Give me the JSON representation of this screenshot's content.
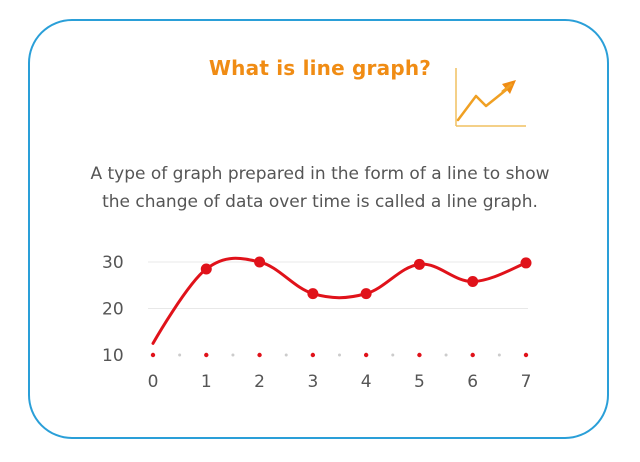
{
  "title": "What is line graph?",
  "description": {
    "line1": "A type of graph prepared in the form of a line to show",
    "line2": "the change of data over time is called a line graph."
  },
  "colors": {
    "border": "#2a9fd8",
    "title": "#f08c14",
    "line": "#e0121a",
    "text": "#555555",
    "icon": "#f0a023"
  },
  "icon": "trend-up-arrow-icon",
  "chart_data": {
    "type": "line",
    "x": [
      0,
      1,
      2,
      3,
      4,
      5,
      6,
      7
    ],
    "values": [
      12.5,
      28.5,
      30,
      23.2,
      23.2,
      29.5,
      25.8,
      29.8
    ],
    "x_ticks": [
      "0",
      "1",
      "2",
      "3",
      "4",
      "5",
      "6",
      "7"
    ],
    "y_ticks": [
      "10",
      "20",
      "30"
    ],
    "ylim": [
      10,
      30
    ],
    "xlim": [
      0,
      7
    ],
    "grid": true,
    "smooth": true,
    "markers_on_points": [
      1,
      2,
      3,
      4,
      5,
      6,
      7
    ]
  }
}
